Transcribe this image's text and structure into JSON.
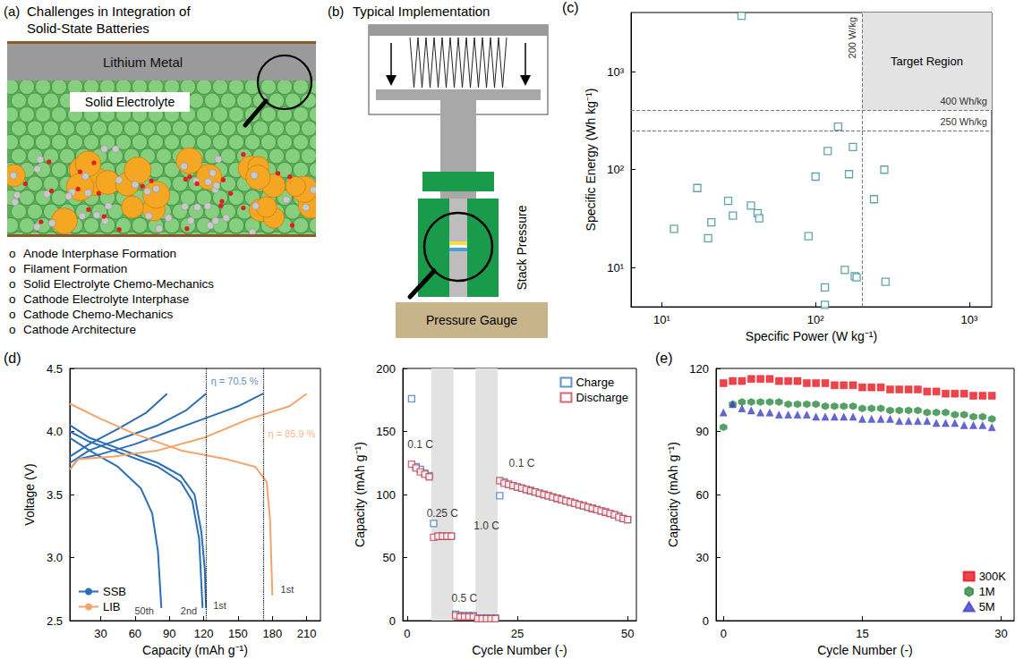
{
  "figure": {
    "panel_a": {
      "label": "(a)",
      "title_lines": [
        "Challenges in Integration of",
        "Solid-State Batteries"
      ],
      "anode": "Lithium Metal",
      "electrolyte": "Solid Electrolyte",
      "bullet": "o",
      "challenges": [
        "Anode Interphase Formation",
        "Filament Formation",
        "Solid Electrolyte Chemo-Mechanics",
        "Cathode Electrolyte Interphase",
        "Cathode Chemo-Mechanics",
        "Cathode Architecture"
      ]
    },
    "panel_b": {
      "label": "(b)",
      "title": "Typical Implementation",
      "side_label": "Stack Pressure",
      "base_label": "Pressure Gauge"
    }
  },
  "chart_data": [
    {
      "panel": "(c)",
      "type": "scatter",
      "log": true,
      "grid": false,
      "x_label": "Specific Power (W kg⁻¹)",
      "y_label": "Specific Energy (Wh kg⁻¹)",
      "xlim": [
        6.3,
        1400
      ],
      "ylim": [
        4,
        4000
      ],
      "xticks": [
        {
          "value": 10,
          "label": "10¹"
        },
        {
          "value": 100,
          "label": "10²"
        },
        {
          "value": 1000,
          "label": "10³"
        }
      ],
      "yticks": [
        {
          "value": 10,
          "label": "10¹"
        },
        {
          "value": 100,
          "label": "10²"
        },
        {
          "value": 1000,
          "label": "10³"
        }
      ],
      "marker": "open_square",
      "color": "#3a8f96",
      "x": [
        12,
        17,
        20,
        21,
        27,
        29,
        33,
        38,
        42,
        43,
        90,
        100,
        115,
        115,
        120,
        140,
        155,
        165,
        175,
        180,
        185,
        240,
        280,
        285
      ],
      "values": [
        25,
        65,
        20,
        29,
        48,
        34,
        3700,
        43,
        36,
        32,
        21,
        85,
        6.3,
        4.2,
        155,
        275,
        9.5,
        90,
        170,
        8.2,
        8,
        50,
        100,
        7.2
      ],
      "reference_lines": [
        {
          "axis": "x",
          "value": 200,
          "label": "200 W/kg"
        },
        {
          "axis": "y",
          "value": 400,
          "label": "400 Wh/kg"
        },
        {
          "axis": "y",
          "value": 250,
          "label": "250 Wh/kg"
        }
      ],
      "target_region": {
        "label": "Target Region",
        "x_min": 200,
        "y_min": 400
      }
    },
    {
      "panel": "(d)",
      "type": "line",
      "grid": false,
      "legend": "lower left",
      "x_label": "Capacity (mAh g⁻¹)",
      "y_label": "Voltage (V)",
      "xlim": [
        3,
        222
      ],
      "xticks": [
        30,
        60,
        90,
        120,
        150,
        180,
        210
      ],
      "ylim": [
        2.5,
        4.5
      ],
      "yticks": [
        2.5,
        {
          "value": 3,
          "label": "3.0"
        },
        3.5,
        {
          "value": 4,
          "label": "4.0"
        },
        4.5
      ],
      "series": [
        {
          "name": "SSB",
          "color": "#2b6fb6",
          "curves": [
            {
              "charge": [
                [
                  3,
                  3.7
                ],
                [
                  10,
                  3.78
                ],
                [
                  30,
                  3.82
                ],
                [
                  60,
                  3.9
                ],
                [
                  90,
                  4.0
                ],
                [
                  120,
                  4.1
                ],
                [
                  150,
                  4.2
                ],
                [
                  172,
                  4.3
                ]
              ],
              "discharge": [
                [
                  3,
                  4.05
                ],
                [
                  20,
                  3.95
                ],
                [
                  50,
                  3.85
                ],
                [
                  80,
                  3.75
                ],
                [
                  100,
                  3.65
                ],
                [
                  112,
                  3.5
                ],
                [
                  118,
                  3.2
                ],
                [
                  121,
                  2.9
                ],
                [
                  122,
                  2.6
                ]
              ]
            },
            {
              "charge": [
                [
                  3,
                  3.75
                ],
                [
                  20,
                  3.85
                ],
                [
                  50,
                  3.95
                ],
                [
                  80,
                  4.05
                ],
                [
                  105,
                  4.17
                ],
                [
                  122,
                  4.3
                ]
              ],
              "discharge": [
                [
                  3,
                  4.0
                ],
                [
                  20,
                  3.92
                ],
                [
                  50,
                  3.82
                ],
                [
                  80,
                  3.72
                ],
                [
                  100,
                  3.6
                ],
                [
                  110,
                  3.45
                ],
                [
                  116,
                  3.15
                ],
                [
                  119,
                  2.6
                ]
              ]
            },
            {
              "charge": [
                [
                  3,
                  3.8
                ],
                [
                  20,
                  3.9
                ],
                [
                  45,
                  4.02
                ],
                [
                  70,
                  4.15
                ],
                [
                  88,
                  4.3
                ]
              ],
              "discharge": [
                [
                  3,
                  3.95
                ],
                [
                  20,
                  3.85
                ],
                [
                  45,
                  3.72
                ],
                [
                  65,
                  3.55
                ],
                [
                  75,
                  3.35
                ],
                [
                  80,
                  3.05
                ],
                [
                  83,
                  2.6
                ]
              ]
            }
          ]
        },
        {
          "name": "LIB",
          "color": "#f4a36b",
          "curves": [
            {
              "charge": [
                [
                  3,
                  3.7
                ],
                [
                  10,
                  3.78
                ],
                [
                  40,
                  3.8
                ],
                [
                  80,
                  3.85
                ],
                [
                  120,
                  3.95
                ],
                [
                  160,
                  4.1
                ],
                [
                  195,
                  4.2
                ],
                [
                  210,
                  4.3
                ]
              ],
              "discharge": [
                [
                  3,
                  4.22
                ],
                [
                  30,
                  4.1
                ],
                [
                  60,
                  3.98
                ],
                [
                  100,
                  3.85
                ],
                [
                  140,
                  3.78
                ],
                [
                  165,
                  3.72
                ],
                [
                  175,
                  3.6
                ],
                [
                  178,
                  3.3
                ],
                [
                  180,
                  2.7
                ]
              ]
            }
          ]
        }
      ],
      "guide_lines_x": [
        122,
        172
      ],
      "annotations": [
        {
          "text": "η = 70.5 %",
          "x": 147,
          "y": 4.4,
          "color": "#2b6fb6"
        },
        {
          "text": "η = 85.9 %",
          "x": 197,
          "y": 3.98,
          "color": "#f4a36b"
        },
        {
          "text": "50th",
          "x": 68,
          "y": 2.58
        },
        {
          "text": "2nd",
          "x": 107,
          "y": 2.58
        },
        {
          "text": "1st",
          "x": 134,
          "y": 2.62
        },
        {
          "text": "1st",
          "x": 193,
          "y": 2.75
        }
      ]
    },
    {
      "type": "scatter",
      "grid": false,
      "legend": "upper right",
      "marker": "open_square",
      "x_label": "Cycle Number (-)",
      "y_label": "Capacity (mAh g⁻¹)",
      "xlim": [
        -1,
        52
      ],
      "xticks": [
        0,
        25,
        50
      ],
      "ylim": [
        0,
        200
      ],
      "yticks": [
        0,
        50,
        100,
        150,
        200
      ],
      "x": [
        1,
        2,
        3,
        4,
        5,
        6,
        7,
        8,
        9,
        10,
        11,
        12,
        13,
        14,
        15,
        16,
        17,
        18,
        19,
        20,
        21,
        22,
        23,
        24,
        25,
        26,
        27,
        28,
        29,
        30,
        31,
        32,
        33,
        34,
        35,
        36,
        37,
        38,
        39,
        40,
        41,
        42,
        43,
        44,
        45,
        46,
        47,
        48,
        49,
        50
      ],
      "series": [
        {
          "name": "Charge",
          "color": "#3b78c2",
          "values": [
            176,
            122,
            120,
            117,
            115,
            77,
            67,
            67,
            67,
            67,
            5,
            4,
            4,
            4,
            4,
            2,
            2,
            2,
            2,
            2,
            99,
            110,
            108,
            107,
            106,
            105,
            104,
            103,
            102,
            101,
            100,
            99,
            98,
            97,
            96,
            95,
            94,
            93,
            92,
            91,
            90,
            89,
            88,
            87,
            86,
            85,
            84,
            83,
            81,
            80
          ]
        },
        {
          "name": "Discharge",
          "color": "#d0404a",
          "values": [
            124,
            121,
            118,
            116,
            114,
            66,
            67,
            67,
            67,
            67,
            4,
            3,
            3,
            3,
            3,
            1.5,
            1.5,
            1.5,
            1.5,
            1.5,
            111,
            109,
            108,
            107,
            106,
            105,
            104,
            103,
            102,
            101,
            100,
            99,
            98,
            97,
            96,
            95,
            94,
            93,
            92,
            91,
            90,
            89,
            88,
            87,
            86,
            85,
            84,
            82,
            81,
            80
          ]
        }
      ],
      "shaded_ranges": [
        [
          5.5,
          10.5
        ],
        [
          15.5,
          20.5
        ]
      ],
      "annotations": [
        {
          "text": "0.1 C",
          "x": 3,
          "y": 140
        },
        {
          "text": "0.25 C",
          "x": 8,
          "y": 85
        },
        {
          "text": "0.5 C",
          "x": 13,
          "y": 18
        },
        {
          "text": "1.0 C",
          "x": 18,
          "y": 75
        },
        {
          "text": "0.1 C",
          "x": 26,
          "y": 125
        }
      ]
    },
    {
      "panel": "(e)",
      "type": "scatter",
      "grid": false,
      "legend": "lower right",
      "x_label": "Cycle Number (-)",
      "y_label": "Capacity (mAh g⁻¹)",
      "xlim": [
        -0.8,
        31.4
      ],
      "xticks": [
        0,
        15,
        30
      ],
      "ylim": [
        0,
        120
      ],
      "yticks": [
        0,
        30,
        60,
        90,
        120
      ],
      "x": [
        0,
        1,
        2,
        3,
        4,
        5,
        6,
        7,
        8,
        9,
        10,
        11,
        12,
        13,
        14,
        15,
        16,
        17,
        18,
        19,
        20,
        21,
        22,
        23,
        24,
        25,
        26,
        27,
        28,
        29
      ],
      "series": [
        {
          "name": "300K",
          "color": "#e8141e",
          "marker": "square",
          "values": [
            113,
            114,
            114,
            115,
            115,
            115,
            114,
            114,
            114,
            113,
            113,
            113,
            112,
            112,
            112,
            111,
            111,
            111,
            110,
            110,
            110,
            110,
            109,
            109,
            108,
            108,
            108,
            107,
            107,
            107
          ]
        },
        {
          "name": "1M",
          "color": "#2a8a3e",
          "marker": "hexagon",
          "values": [
            92,
            103,
            104,
            104,
            104,
            104,
            104,
            103,
            103,
            103,
            103,
            102,
            102,
            102,
            102,
            101,
            101,
            101,
            100,
            100,
            100,
            100,
            99,
            99,
            99,
            98,
            98,
            97,
            97,
            96
          ]
        },
        {
          "name": "5M",
          "color": "#3e3fc8",
          "marker": "triangle",
          "values": [
            99,
            103,
            101,
            100,
            99,
            99,
            98,
            98,
            98,
            98,
            97,
            97,
            97,
            97,
            97,
            96,
            96,
            96,
            96,
            95,
            95,
            95,
            95,
            94,
            94,
            94,
            93,
            93,
            93,
            92
          ]
        }
      ]
    }
  ]
}
